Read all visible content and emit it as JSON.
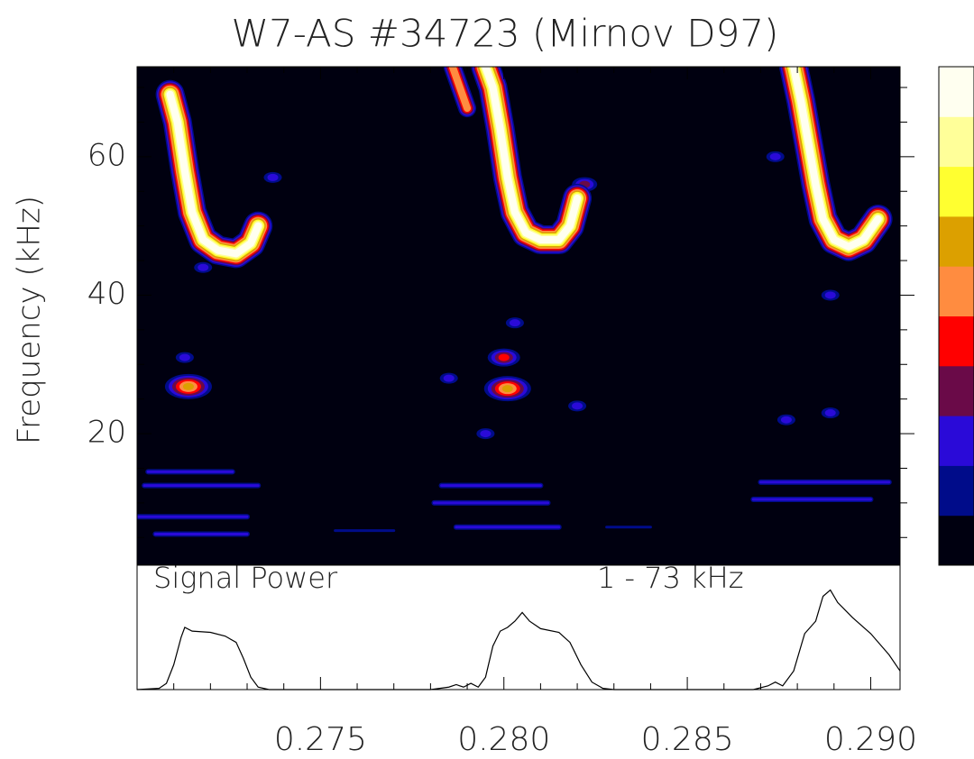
{
  "chart_data": [
    {
      "type": "contour",
      "title": "W7-AS #34723  (Mirnov D97)",
      "ylabel": "Frequency (kHz)",
      "xlim": [
        0.27,
        0.2908
      ],
      "ylim": [
        1,
        73
      ],
      "yticks": [
        20,
        40,
        60
      ],
      "minor_yticks": [
        5,
        10,
        15,
        25,
        30,
        35,
        45,
        50,
        55,
        65,
        70
      ],
      "minor_xticks": [
        0.271,
        0.272,
        0.273,
        0.274,
        0.276,
        0.277,
        0.278,
        0.279,
        0.281,
        0.282,
        0.283,
        0.284,
        0.286,
        0.287,
        0.288,
        0.289
      ],
      "xticks": [
        0.275,
        {
          "value": 0.28,
          "label": "0.280"
        },
        0.285,
        {
          "value": 0.29,
          "label": "0.290"
        }
      ],
      "colors": [
        "#000010",
        "#000c8a",
        "#2a0ad8",
        "#6a0a48",
        "#ff0000",
        "#ff8c40",
        "#dca000",
        "#ffff30",
        "#ffff99",
        "#fffff0"
      ],
      "ridges": [
        {
          "t": [
            0.2709,
            0.2711,
            0.2713,
            0.2715,
            0.2718,
            0.2722,
            0.2727,
            0.2731,
            0.2733
          ],
          "f": [
            69,
            65,
            58,
            52,
            48,
            46.5,
            46,
            47.5,
            50
          ],
          "level": 9
        },
        {
          "t": [
            0.2786,
            0.2788,
            0.279
          ],
          "f": [
            73,
            70,
            67
          ],
          "level": 5
        },
        {
          "t": [
            0.2795,
            0.2797,
            0.2799,
            0.2801,
            0.2803,
            0.2806,
            0.281,
            0.2815,
            0.2818,
            0.282
          ],
          "f": [
            73,
            70,
            64,
            57,
            52,
            49,
            48,
            48,
            50,
            54
          ],
          "level": 9
        },
        {
          "t": [
            0.2879,
            0.2881,
            0.2883,
            0.2885,
            0.2887,
            0.289,
            0.2894,
            0.2898,
            0.2902
          ],
          "f": [
            73,
            68,
            62,
            56,
            51,
            48,
            47,
            48,
            51
          ],
          "level": 9
        }
      ],
      "spots": [
        {
          "t": 0.2714,
          "f": 26.8,
          "level": 6
        },
        {
          "t": 0.2801,
          "f": 26.5,
          "level": 6
        },
        {
          "t": 0.28,
          "f": 31,
          "level": 4
        },
        {
          "t": 0.2713,
          "f": 31,
          "level": 2
        },
        {
          "t": 0.282,
          "f": 24,
          "level": 2
        },
        {
          "t": 0.2795,
          "f": 20,
          "level": 2
        },
        {
          "t": 0.2889,
          "f": 23,
          "level": 2
        },
        {
          "t": 0.2877,
          "f": 22,
          "level": 2
        },
        {
          "t": 0.2785,
          "f": 28,
          "level": 2
        },
        {
          "t": 0.2718,
          "f": 44,
          "level": 2
        },
        {
          "t": 0.2803,
          "f": 36,
          "level": 2
        },
        {
          "t": 0.2889,
          "f": 40,
          "level": 2
        },
        {
          "t": 0.2874,
          "f": 60,
          "level": 2
        },
        {
          "t": 0.2737,
          "f": 57,
          "level": 2
        },
        {
          "t": 0.2822,
          "f": 56,
          "level": 3
        }
      ],
      "streaks": [
        {
          "t": [
            0.2702,
            0.2733
          ],
          "f": 12.5,
          "level": 2
        },
        {
          "t": [
            0.27,
            0.273
          ],
          "f": 8,
          "level": 2
        },
        {
          "t": [
            0.2703,
            0.2726
          ],
          "f": 14.5,
          "level": 2
        },
        {
          "t": [
            0.2781,
            0.2812
          ],
          "f": 10,
          "level": 2
        },
        {
          "t": [
            0.2783,
            0.281
          ],
          "f": 12.5,
          "level": 2
        },
        {
          "t": [
            0.2787,
            0.2815
          ],
          "f": 6.5,
          "level": 2
        },
        {
          "t": [
            0.287,
            0.2905
          ],
          "f": 13,
          "level": 2
        },
        {
          "t": [
            0.2868,
            0.29
          ],
          "f": 10.5,
          "level": 2
        },
        {
          "t": [
            0.2705,
            0.273
          ],
          "f": 5.5,
          "level": 2
        },
        {
          "t": [
            0.2754,
            0.277
          ],
          "f": 6,
          "level": 1
        },
        {
          "t": [
            0.2828,
            0.284
          ],
          "f": 6.5,
          "level": 1
        }
      ]
    },
    {
      "type": "line",
      "label": "Signal Power",
      "annotation": "1 - 73 kHz",
      "color": "#000000",
      "xlim": [
        0.27,
        0.2908
      ],
      "ylim": [
        0,
        1
      ],
      "x": [
        0.27,
        0.2706,
        0.2708,
        0.271,
        0.2712,
        0.2713,
        0.2715,
        0.272,
        0.2724,
        0.2727,
        0.2729,
        0.2731,
        0.2733,
        0.2736,
        0.278,
        0.2785,
        0.2787,
        0.2789,
        0.2791,
        0.2793,
        0.2795,
        0.2797,
        0.2799,
        0.2801,
        0.2803,
        0.2805,
        0.2807,
        0.281,
        0.2815,
        0.2818,
        0.2821,
        0.2824,
        0.2827,
        0.283,
        0.2868,
        0.2872,
        0.2874,
        0.2876,
        0.2879,
        0.2882,
        0.2885,
        0.2887,
        0.2889,
        0.2891,
        0.2895,
        0.29,
        0.2905,
        0.2908
      ],
      "values": [
        0,
        0.01,
        0.05,
        0.2,
        0.42,
        0.5,
        0.47,
        0.46,
        0.43,
        0.38,
        0.25,
        0.1,
        0.02,
        0,
        0,
        0.02,
        0.04,
        0.02,
        0.05,
        0.02,
        0.1,
        0.35,
        0.47,
        0.5,
        0.55,
        0.62,
        0.55,
        0.49,
        0.46,
        0.38,
        0.2,
        0.06,
        0.01,
        0,
        0,
        0.03,
        0.06,
        0.03,
        0.15,
        0.45,
        0.55,
        0.75,
        0.8,
        0.7,
        0.58,
        0.45,
        0.28,
        0.15
      ]
    }
  ]
}
